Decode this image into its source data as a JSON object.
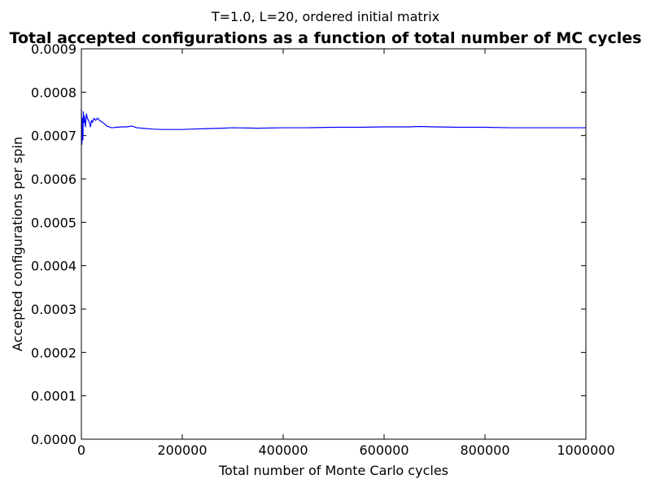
{
  "chart_data": {
    "type": "line",
    "suptitle": "T=1.0, L=20, ordered initial matrix",
    "title": "Total accepted configurations as a function of total number of MC cycles",
    "xlabel": "Total number of Monte Carlo cycles",
    "ylabel": "Accepted configurations per spin",
    "xlim": [
      0,
      1000000
    ],
    "ylim": [
      0,
      0.0009
    ],
    "grid": false,
    "xticks": [
      0,
      200000,
      400000,
      600000,
      800000,
      1000000
    ],
    "xtick_labels": [
      "0",
      "200000",
      "400000",
      "600000",
      "800000",
      "1000000"
    ],
    "yticks": [
      0,
      0.0001,
      0.0002,
      0.0003,
      0.0004,
      0.0005,
      0.0006,
      0.0007,
      0.0008,
      0.0009
    ],
    "ytick_labels": [
      "0.0000",
      "0.0001",
      "0.0002",
      "0.0003",
      "0.0004",
      "0.0005",
      "0.0006",
      "0.0007",
      "0.0008",
      "0.0009"
    ],
    "series": [
      {
        "color": "#0000ff",
        "x": [
          0,
          1000,
          2000,
          3000,
          4000,
          5000,
          6000,
          8000,
          10000,
          12000,
          14000,
          16000,
          18000,
          20000,
          22000,
          25000,
          28000,
          32000,
          36000,
          40000,
          45000,
          50000,
          60000,
          70000,
          80000,
          90000,
          100000,
          110000,
          120000,
          140000,
          160000,
          180000,
          200000,
          220000,
          250000,
          280000,
          300000,
          350000,
          400000,
          450000,
          500000,
          550000,
          600000,
          650000,
          670000,
          700000,
          750000,
          800000,
          850000,
          900000,
          950000,
          1000000
        ],
        "y": [
          0.00076,
          0.00068,
          0.00074,
          0.00069,
          0.000755,
          0.00073,
          0.000745,
          0.00072,
          0.00075,
          0.00074,
          0.000735,
          0.00073,
          0.00072,
          0.000735,
          0.00073,
          0.00074,
          0.000735,
          0.00074,
          0.000735,
          0.000732,
          0.000728,
          0.000722,
          0.000718,
          0.000719,
          0.00072,
          0.00072,
          0.000722,
          0.000718,
          0.000717,
          0.000715,
          0.000714,
          0.000714,
          0.000714,
          0.000715,
          0.000716,
          0.000717,
          0.000718,
          0.000717,
          0.000718,
          0.000718,
          0.000719,
          0.000719,
          0.00072,
          0.00072,
          0.000721,
          0.00072,
          0.000719,
          0.000719,
          0.000718,
          0.000718,
          0.000718,
          0.000718
        ]
      }
    ]
  }
}
